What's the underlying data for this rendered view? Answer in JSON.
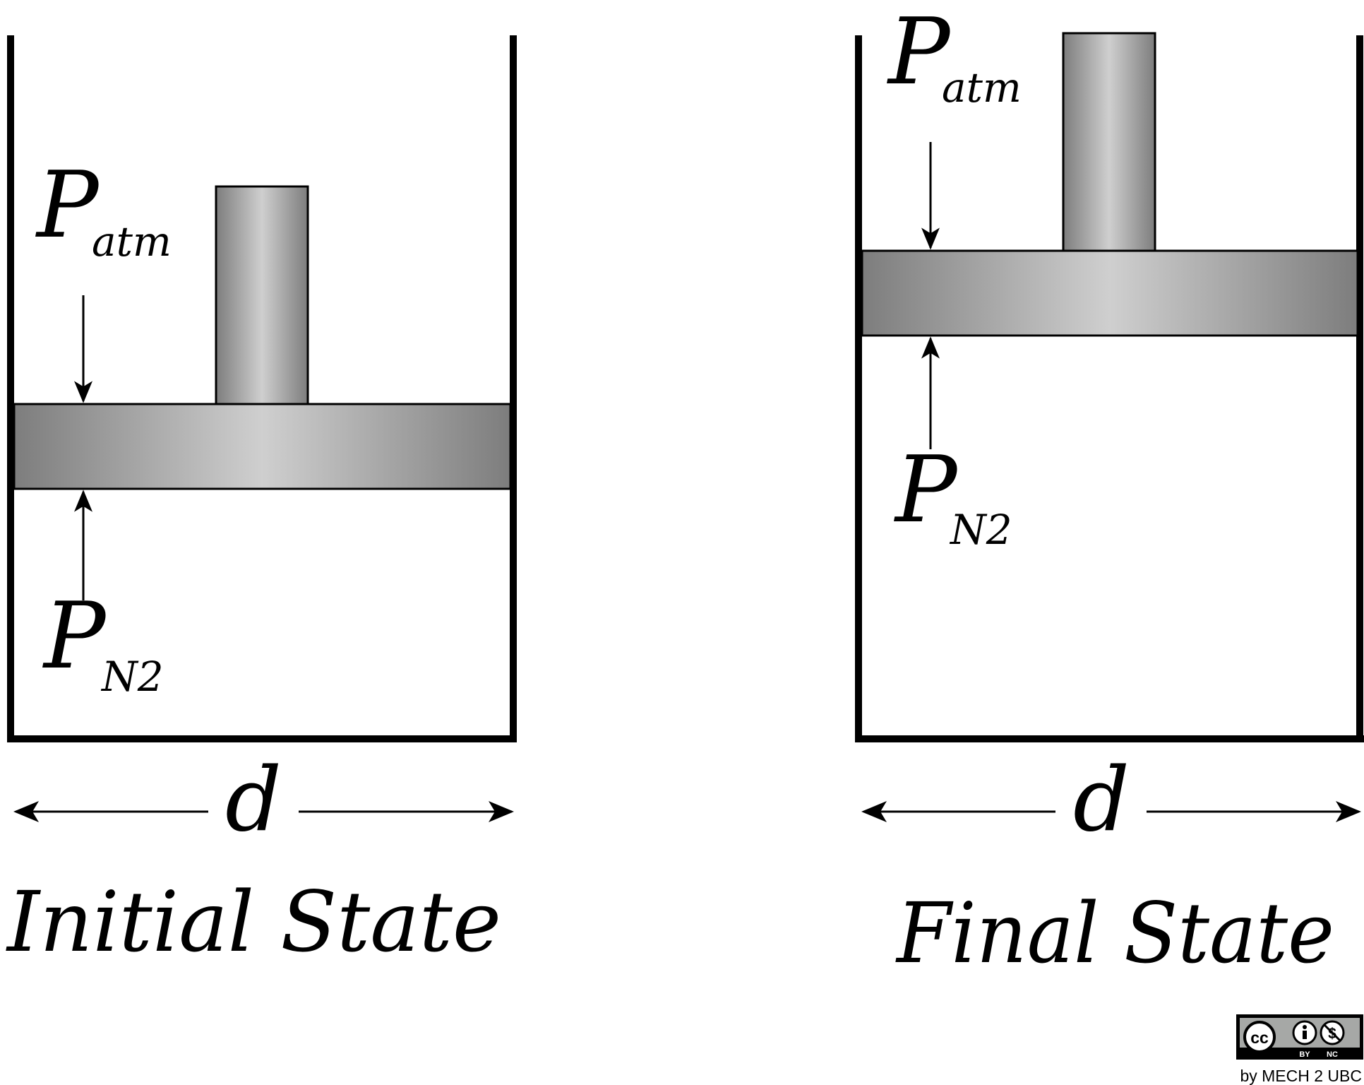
{
  "symbols": {
    "pressure": "P",
    "atm_subscript": "atm",
    "n2_subscript": "N2",
    "diameter": "d"
  },
  "panels": [
    {
      "caption": "Initial State"
    },
    {
      "caption": "Final State"
    }
  ],
  "license": {
    "badge_cc": "cc",
    "badge_by": "BY",
    "badge_nc": "NC",
    "credit": "by MECH 2 UBC"
  }
}
